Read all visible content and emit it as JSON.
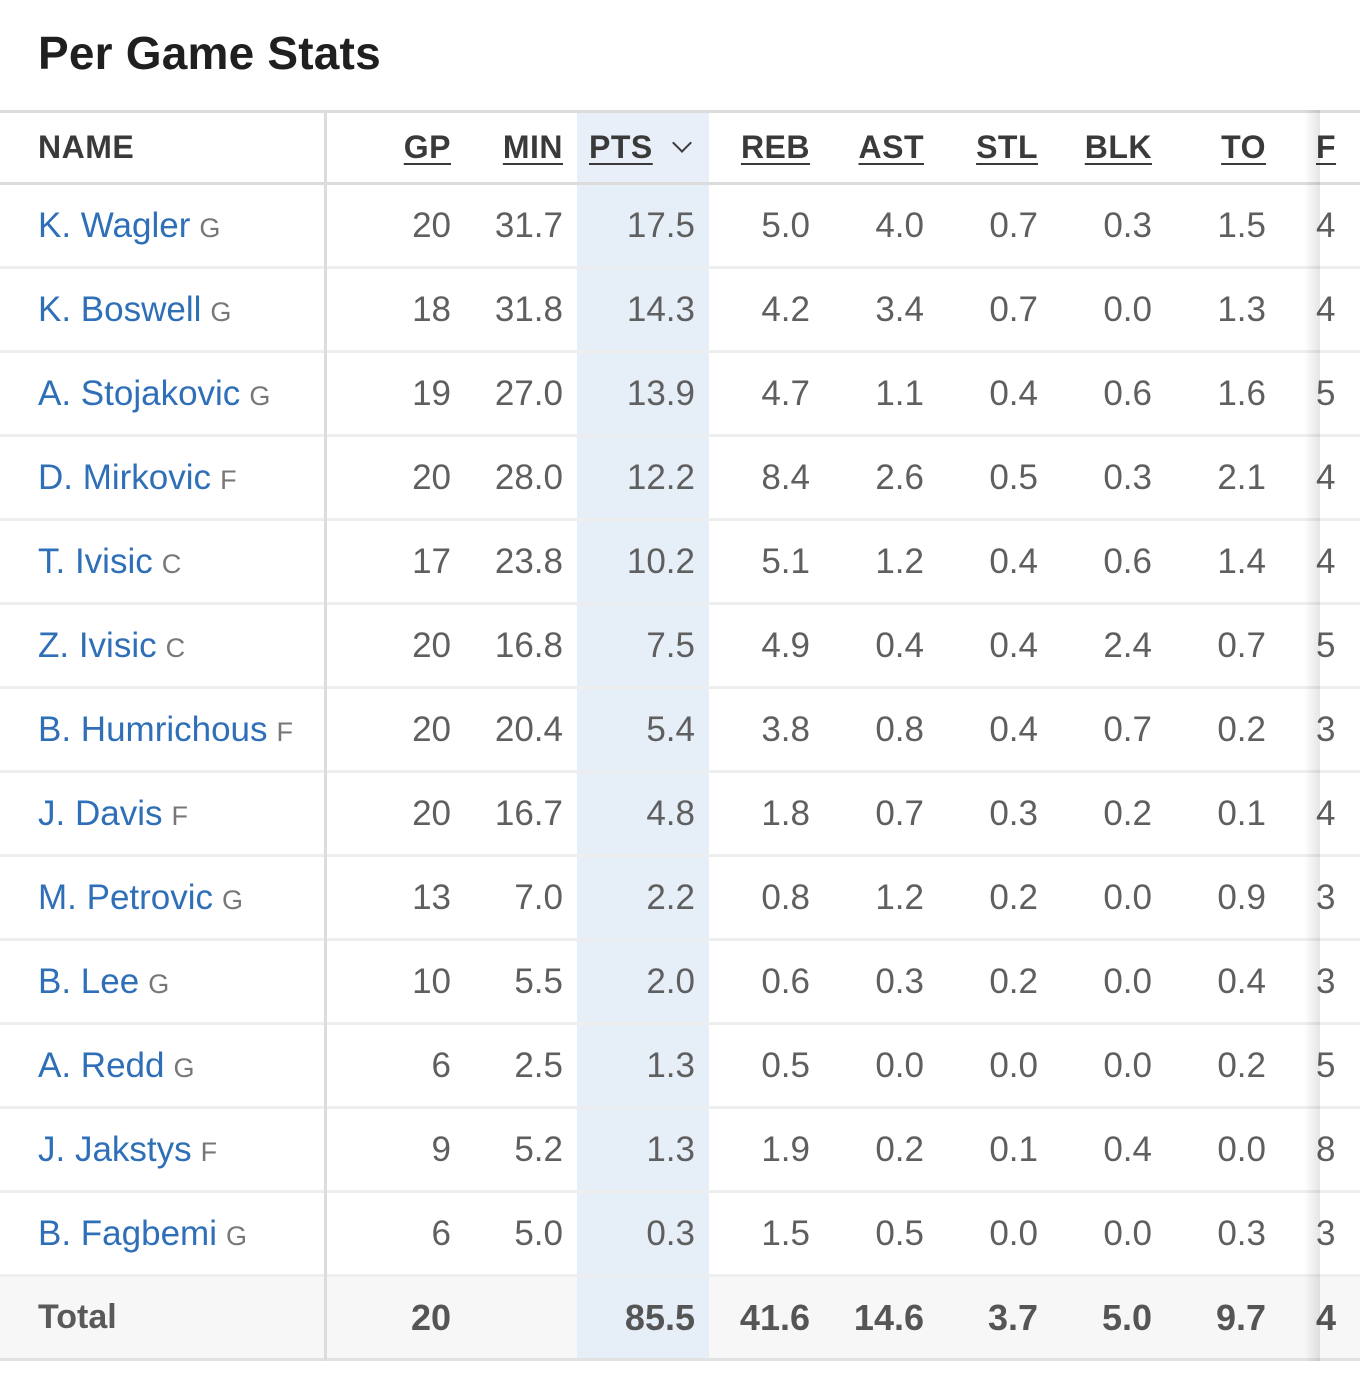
{
  "page_title": "Per Game Stats",
  "columns": {
    "name": "NAME",
    "gp": "GP",
    "min": "MIN",
    "pts": "PTS",
    "reb": "REB",
    "ast": "AST",
    "stl": "STL",
    "blk": "BLK",
    "to": "TO",
    "next": "F"
  },
  "sort": {
    "column": "PTS",
    "direction": "desc"
  },
  "players": [
    {
      "name": "K. Wagler",
      "pos": "G",
      "gp": "20",
      "min": "31.7",
      "pts": "17.5",
      "reb": "5.0",
      "ast": "4.0",
      "stl": "0.7",
      "blk": "0.3",
      "to": "1.5",
      "next": "4"
    },
    {
      "name": "K. Boswell",
      "pos": "G",
      "gp": "18",
      "min": "31.8",
      "pts": "14.3",
      "reb": "4.2",
      "ast": "3.4",
      "stl": "0.7",
      "blk": "0.0",
      "to": "1.3",
      "next": "4"
    },
    {
      "name": "A. Stojakovic",
      "pos": "G",
      "gp": "19",
      "min": "27.0",
      "pts": "13.9",
      "reb": "4.7",
      "ast": "1.1",
      "stl": "0.4",
      "blk": "0.6",
      "to": "1.6",
      "next": "5"
    },
    {
      "name": "D. Mirkovic",
      "pos": "F",
      "gp": "20",
      "min": "28.0",
      "pts": "12.2",
      "reb": "8.4",
      "ast": "2.6",
      "stl": "0.5",
      "blk": "0.3",
      "to": "2.1",
      "next": "4"
    },
    {
      "name": "T. Ivisic",
      "pos": "C",
      "gp": "17",
      "min": "23.8",
      "pts": "10.2",
      "reb": "5.1",
      "ast": "1.2",
      "stl": "0.4",
      "blk": "0.6",
      "to": "1.4",
      "next": "4"
    },
    {
      "name": "Z. Ivisic",
      "pos": "C",
      "gp": "20",
      "min": "16.8",
      "pts": "7.5",
      "reb": "4.9",
      "ast": "0.4",
      "stl": "0.4",
      "blk": "2.4",
      "to": "0.7",
      "next": "5"
    },
    {
      "name": "B. Humrichous",
      "pos": "F",
      "gp": "20",
      "min": "20.4",
      "pts": "5.4",
      "reb": "3.8",
      "ast": "0.8",
      "stl": "0.4",
      "blk": "0.7",
      "to": "0.2",
      "next": "3"
    },
    {
      "name": "J. Davis",
      "pos": "F",
      "gp": "20",
      "min": "16.7",
      "pts": "4.8",
      "reb": "1.8",
      "ast": "0.7",
      "stl": "0.3",
      "blk": "0.2",
      "to": "0.1",
      "next": "4"
    },
    {
      "name": "M. Petrovic",
      "pos": "G",
      "gp": "13",
      "min": "7.0",
      "pts": "2.2",
      "reb": "0.8",
      "ast": "1.2",
      "stl": "0.2",
      "blk": "0.0",
      "to": "0.9",
      "next": "3"
    },
    {
      "name": "B. Lee",
      "pos": "G",
      "gp": "10",
      "min": "5.5",
      "pts": "2.0",
      "reb": "0.6",
      "ast": "0.3",
      "stl": "0.2",
      "blk": "0.0",
      "to": "0.4",
      "next": "3"
    },
    {
      "name": "A. Redd",
      "pos": "G",
      "gp": "6",
      "min": "2.5",
      "pts": "1.3",
      "reb": "0.5",
      "ast": "0.0",
      "stl": "0.0",
      "blk": "0.0",
      "to": "0.2",
      "next": "5"
    },
    {
      "name": "J. Jakstys",
      "pos": "F",
      "gp": "9",
      "min": "5.2",
      "pts": "1.3",
      "reb": "1.9",
      "ast": "0.2",
      "stl": "0.1",
      "blk": "0.4",
      "to": "0.0",
      "next": "8"
    },
    {
      "name": "B. Fagbemi",
      "pos": "G",
      "gp": "6",
      "min": "5.0",
      "pts": "0.3",
      "reb": "1.5",
      "ast": "0.5",
      "stl": "0.0",
      "blk": "0.0",
      "to": "0.3",
      "next": "3"
    }
  ],
  "total": {
    "label": "Total",
    "gp": "20",
    "min": "",
    "pts": "85.5",
    "reb": "41.6",
    "ast": "14.6",
    "stl": "3.7",
    "blk": "5.0",
    "to": "9.7",
    "next": "4"
  },
  "colors": {
    "link": "#2f6fb7",
    "sorted_column_bg": "#e6eef8",
    "row_divider": "#eeeeee"
  }
}
